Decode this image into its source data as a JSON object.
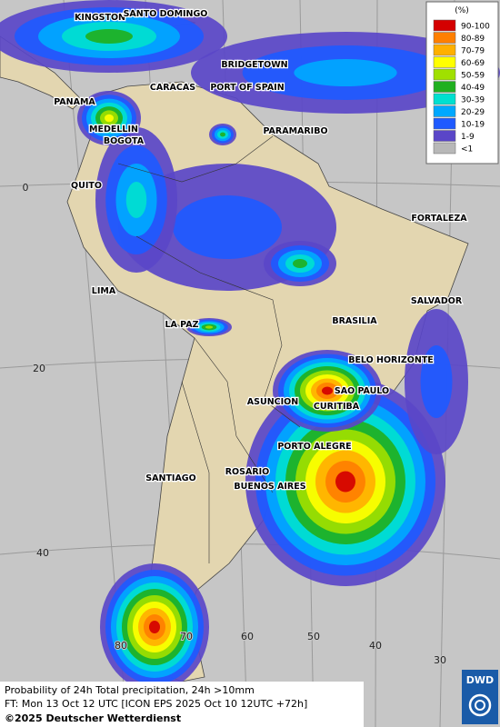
{
  "legend": {
    "title": "(%)",
    "entries": [
      {
        "label": "90-100",
        "color": "#d40000"
      },
      {
        "label": "80-89",
        "color": "#ff7f00"
      },
      {
        "label": "70-79",
        "color": "#ffb000"
      },
      {
        "label": "60-69",
        "color": "#ffff00"
      },
      {
        "label": "50-59",
        "color": "#a0e000"
      },
      {
        "label": "40-49",
        "color": "#20b020"
      },
      {
        "label": "30-39",
        "color": "#00e0d0"
      },
      {
        "label": "20-29",
        "color": "#00a8ff"
      },
      {
        "label": "10-19",
        "color": "#1e5aff"
      },
      {
        "label": "1-9",
        "color": "#5a46c8"
      },
      {
        "label": "<1",
        "color": "#b8b8b8"
      }
    ]
  },
  "cities": [
    "KINGSTON",
    "SANTO DOMINGO",
    "BRIDGETOWN",
    "CARACAS",
    "PORT OF SPAIN",
    "PANAMA",
    "MEDELLIN",
    "BOGOTA",
    "PARAMARIBO",
    "QUITO",
    "FORTALEZA",
    "LIMA",
    "SALVADOR",
    "LA PAZ",
    "BRASILIA",
    "BELO HORIZONTE",
    "SAO PAULO",
    "ASUNCION",
    "CURITIBA",
    "PORTO ALEGRE",
    "ROSARIO",
    "SANTIAGO",
    "BUENOS AIRES"
  ],
  "latitude_labels": [
    "0",
    "20",
    "40"
  ],
  "longitude_labels": [
    "80",
    "70",
    "60",
    "50",
    "40",
    "30"
  ],
  "footer": {
    "line1": "Probability of 24h Total precipitation, 24h >10mm",
    "line2": "FT: Mon 13 Oct 12 UTC [ICON EPS 2025 Oct 10 12UTC +72h]",
    "copyright": "©2025 Deutscher Wetterdienst"
  },
  "logo": "DWD"
}
